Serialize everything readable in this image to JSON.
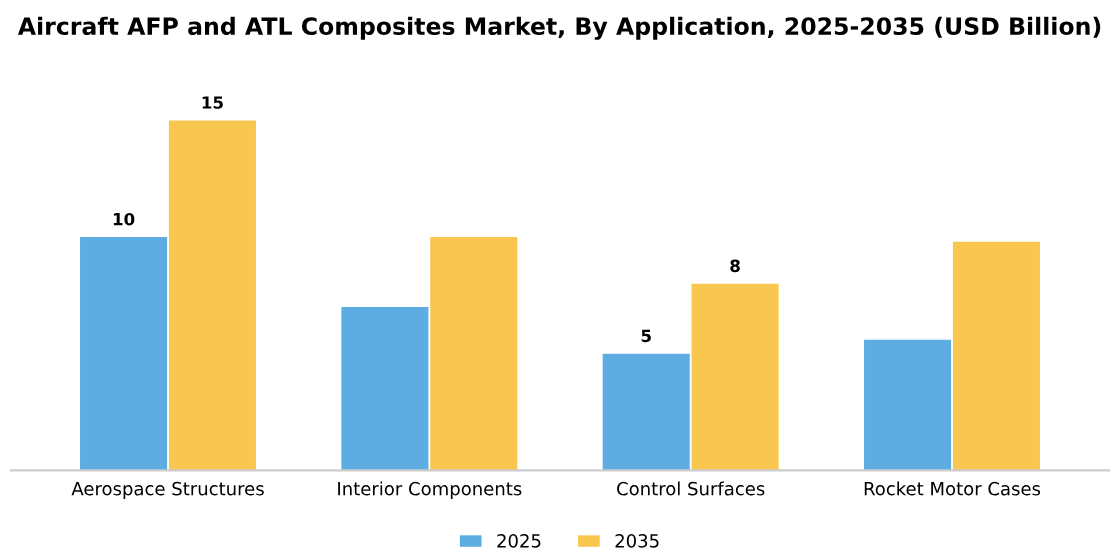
{
  "chart_data": {
    "type": "bar",
    "title": "Aircraft AFP and ATL Composites Market, By Application, 2025-2035 (USD Billion)",
    "categories": [
      "Aerospace Structures",
      "Interior Components",
      "Control Surfaces",
      "Rocket Motor Cases"
    ],
    "series": [
      {
        "name": "2025",
        "color": "#5dade2",
        "values": [
          10,
          7,
          5,
          5.6
        ],
        "value_labels": [
          "10",
          null,
          "5",
          null
        ]
      },
      {
        "name": "2035",
        "color": "#f9c74f",
        "values": [
          15,
          10,
          8,
          9.8
        ],
        "value_labels": [
          "15",
          null,
          "8",
          null
        ]
      }
    ],
    "legend": "bottom",
    "grid": false
  }
}
